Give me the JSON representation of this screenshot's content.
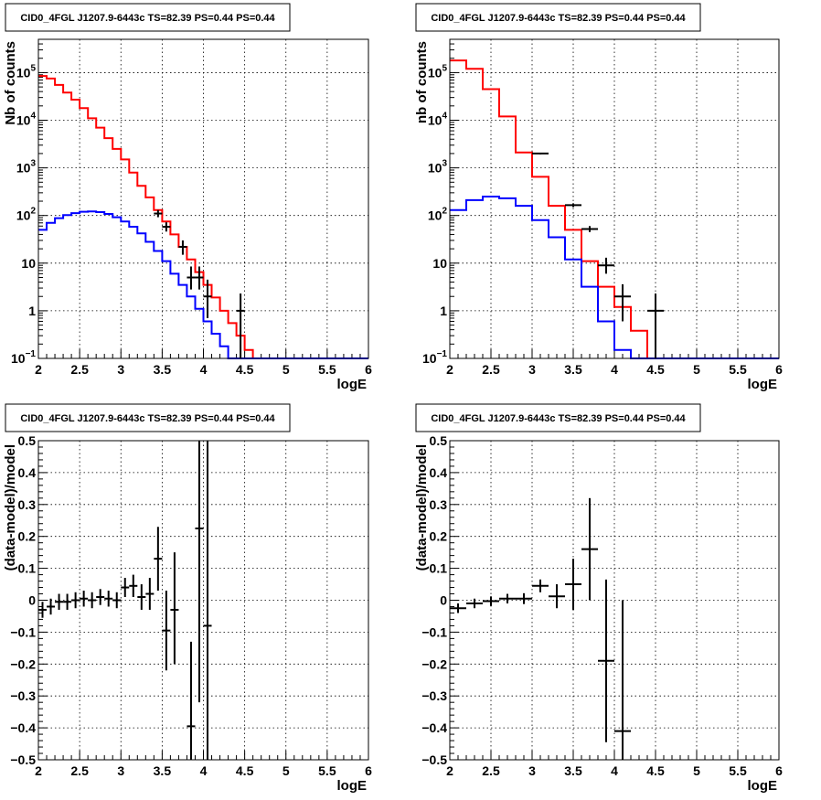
{
  "panels": [
    {
      "title": "CID0_4FGL J1207.9-6443c TS=82.39 PS=0.44 PS=0.44",
      "xlabel": "logE",
      "ylabel": "Nb of counts",
      "xlim": [
        2,
        6
      ],
      "xticks": [
        "2",
        "2.5",
        "3",
        "3.5",
        "4",
        "4.5",
        "5",
        "5.5",
        "6"
      ],
      "ylog": true,
      "ylim": [
        0.1,
        500000
      ],
      "yticks": [
        {
          "v": 0.1,
          "base": "10",
          "exp": "−1"
        },
        {
          "v": 1,
          "label": "1"
        },
        {
          "v": 10,
          "label": "10"
        },
        {
          "v": 100,
          "base": "10",
          "exp": "2"
        },
        {
          "v": 1000,
          "base": "10",
          "exp": "3"
        },
        {
          "v": 10000,
          "base": "10",
          "exp": "4"
        },
        {
          "v": 100000,
          "base": "10",
          "exp": "5"
        }
      ]
    },
    {
      "title": "CID0_4FGL J1207.9-6443c TS=82.39 PS=0.44 PS=0.44",
      "xlabel": "logE",
      "ylabel": "nb of counts",
      "xlim": [
        2,
        6
      ],
      "xticks": [
        "2",
        "2.5",
        "3",
        "3.5",
        "4",
        "4.5",
        "5",
        "5.5",
        "6"
      ],
      "ylog": true,
      "ylim": [
        0.1,
        500000
      ],
      "yticks": [
        {
          "v": 0.1,
          "base": "10",
          "exp": "−1"
        },
        {
          "v": 1,
          "label": "1"
        },
        {
          "v": 10,
          "label": "10"
        },
        {
          "v": 100,
          "base": "10",
          "exp": "2"
        },
        {
          "v": 1000,
          "base": "10",
          "exp": "3"
        },
        {
          "v": 10000,
          "base": "10",
          "exp": "4"
        },
        {
          "v": 100000,
          "base": "10",
          "exp": "5"
        }
      ]
    },
    {
      "title": "CID0_4FGL J1207.9-6443c TS=82.39 PS=0.44 PS=0.44",
      "xlabel": "logE",
      "ylabel": "(data-model)/model",
      "xlim": [
        2,
        6
      ],
      "xticks": [
        "2",
        "2.5",
        "3",
        "3.5",
        "4",
        "4.5",
        "5",
        "5.5",
        "6"
      ],
      "ylog": false,
      "ylim": [
        -0.5,
        0.5
      ],
      "yticks": [
        {
          "v": -0.5,
          "label": "−0.5"
        },
        {
          "v": -0.4,
          "label": "−0.4"
        },
        {
          "v": -0.3,
          "label": "−0.3"
        },
        {
          "v": -0.2,
          "label": "−0.2"
        },
        {
          "v": -0.1,
          "label": "−0.1"
        },
        {
          "v": 0,
          "label": "0"
        },
        {
          "v": 0.1,
          "label": "0.1"
        },
        {
          "v": 0.2,
          "label": "0.2"
        },
        {
          "v": 0.3,
          "label": "0.3"
        },
        {
          "v": 0.4,
          "label": "0.4"
        },
        {
          "v": 0.5,
          "label": "0.5"
        }
      ]
    },
    {
      "title": "CID0_4FGL J1207.9-6443c TS=82.39 PS=0.44 PS=0.44",
      "xlabel": "logE",
      "ylabel": "(data-model)/model",
      "xlim": [
        2,
        6
      ],
      "xticks": [
        "2",
        "2.5",
        "3",
        "3.5",
        "4",
        "4.5",
        "5",
        "5.5",
        "6"
      ],
      "ylog": false,
      "ylim": [
        -0.5,
        0.5
      ],
      "yticks": [
        {
          "v": -0.5,
          "label": "−0.5"
        },
        {
          "v": -0.4,
          "label": "−0.4"
        },
        {
          "v": -0.3,
          "label": "−0.3"
        },
        {
          "v": -0.2,
          "label": "−0.2"
        },
        {
          "v": -0.1,
          "label": "−0.1"
        },
        {
          "v": 0,
          "label": "0"
        },
        {
          "v": 0.1,
          "label": "0.1"
        },
        {
          "v": 0.2,
          "label": "0.2"
        },
        {
          "v": 0.3,
          "label": "0.3"
        },
        {
          "v": 0.4,
          "label": "0.4"
        },
        {
          "v": 0.5,
          "label": "0.5"
        }
      ]
    }
  ],
  "colors": {
    "total_model": "#ff0000",
    "source_model": "#0000ff",
    "data": "#000000",
    "grid": "#000000"
  },
  "chart_data": [
    {
      "type": "line",
      "title": "CID0_4FGL J1207.9-6443c TS=82.39 PS=0.44 PS=0.44",
      "xlabel": "logE",
      "ylabel": "Nb of counts",
      "xlim": [
        2,
        6
      ],
      "ylim": [
        0.1,
        500000
      ],
      "yscale": "log",
      "grid": true,
      "series": [
        {
          "style": "step",
          "color": "#ff0000",
          "edges": [
            2.0,
            2.1,
            2.2,
            2.3,
            2.4,
            2.5,
            2.6,
            2.7,
            2.8,
            2.9,
            3.0,
            3.1,
            3.2,
            3.3,
            3.4,
            3.5,
            3.6,
            3.7,
            3.8,
            3.9,
            4.0,
            4.1,
            4.2,
            4.3,
            4.4,
            4.5,
            4.6,
            4.7,
            4.8,
            4.9,
            5.0,
            5.1,
            5.2,
            5.3,
            5.4,
            5.5,
            5.6,
            5.7,
            5.8,
            5.9,
            6.0
          ],
          "values": [
            85000,
            75000,
            55000,
            38000,
            27000,
            18000,
            11000,
            7000,
            4200,
            2500,
            1500,
            800,
            420,
            240,
            130,
            75,
            40,
            22,
            12,
            6.5,
            3.5,
            1.9,
            1.0,
            0.55,
            0.3,
            0.15,
            0.1,
            0.1,
            0.1,
            0.1,
            0.1,
            0.1,
            0.1,
            0.1,
            0.1,
            0.1,
            0.1,
            0.1,
            0.1,
            0.1
          ]
        },
        {
          "style": "step",
          "color": "#0000ff",
          "edges": [
            2.0,
            2.1,
            2.2,
            2.3,
            2.4,
            2.5,
            2.6,
            2.7,
            2.8,
            2.9,
            3.0,
            3.1,
            3.2,
            3.3,
            3.4,
            3.5,
            3.6,
            3.7,
            3.8,
            3.9,
            4.0,
            4.1,
            4.2,
            4.3,
            4.4,
            4.5,
            4.6,
            4.7,
            4.8,
            4.9,
            5.0,
            5.1,
            5.2,
            5.3,
            5.4,
            5.5,
            5.6,
            5.7,
            5.8,
            5.9,
            6.0
          ],
          "values": [
            50,
            70,
            88,
            102,
            112,
            120,
            122,
            118,
            108,
            92,
            75,
            58,
            42,
            28,
            18,
            11,
            6,
            3.5,
            2.0,
            1.1,
            0.6,
            0.33,
            0.18,
            0.1,
            0.1,
            0.1,
            0.1,
            0.1,
            0.1,
            0.1,
            0.1,
            0.1,
            0.1,
            0.1,
            0.1,
            0.1,
            0.1,
            0.1,
            0.1,
            0.1
          ]
        },
        {
          "style": "errorbar",
          "color": "#000000",
          "points": [
            {
              "x": 3.45,
              "y": 110,
              "xerr": 0.05,
              "ylo": 92,
              "yhi": 130
            },
            {
              "x": 3.55,
              "y": 58,
              "xerr": 0.05,
              "ylo": 46,
              "yhi": 72
            },
            {
              "x": 3.75,
              "y": 22,
              "xerr": 0.05,
              "ylo": 15,
              "yhi": 30
            },
            {
              "x": 3.85,
              "y": 5,
              "xerr": 0.05,
              "ylo": 2.8,
              "yhi": 8.5
            },
            {
              "x": 3.95,
              "y": 5,
              "xerr": 0.05,
              "ylo": 2.8,
              "yhi": 8.5
            },
            {
              "x": 4.05,
              "y": 2,
              "xerr": 0.05,
              "ylo": 0.7,
              "yhi": 4.5
            },
            {
              "x": 4.45,
              "y": 1,
              "xerr": 0.05,
              "ylo": 0.1,
              "yhi": 2.3
            }
          ]
        }
      ]
    },
    {
      "type": "line",
      "title": "CID0_4FGL J1207.9-6443c TS=82.39 PS=0.44 PS=0.44",
      "xlabel": "logE",
      "ylabel": "nb of counts",
      "xlim": [
        2,
        6
      ],
      "ylim": [
        0.1,
        500000
      ],
      "yscale": "log",
      "grid": true,
      "series": [
        {
          "style": "step",
          "color": "#ff0000",
          "edges": [
            2.0,
            2.2,
            2.4,
            2.6,
            2.8,
            3.0,
            3.2,
            3.4,
            3.6,
            3.8,
            4.0,
            4.2,
            4.4,
            4.6,
            4.8,
            5.0,
            5.2,
            5.4,
            5.6,
            5.8,
            6.0
          ],
          "values": [
            180000,
            120000,
            45000,
            12000,
            2100,
            650,
            160,
            50,
            11,
            3.2,
            1.2,
            0.38,
            0.1,
            0.1,
            0.1,
            0.1,
            0.1,
            0.1,
            0.1,
            0.1
          ]
        },
        {
          "style": "step",
          "color": "#0000ff",
          "edges": [
            2.0,
            2.2,
            2.4,
            2.6,
            2.8,
            3.0,
            3.2,
            3.4,
            3.6,
            3.8,
            4.0,
            4.2,
            4.4,
            4.6,
            4.8,
            5.0,
            5.2,
            5.4,
            5.6,
            5.8,
            6.0
          ],
          "values": [
            130,
            210,
            250,
            230,
            160,
            80,
            35,
            12,
            3.2,
            0.6,
            0.15,
            0.1,
            0.1,
            0.1,
            0.1,
            0.1,
            0.1,
            0.1,
            0.1,
            0.1
          ]
        },
        {
          "style": "errorbar",
          "color": "#000000",
          "points": [
            {
              "x": 3.1,
              "y": 2000,
              "xerr": 0.1,
              "ylo": 1920,
              "yhi": 2080
            },
            {
              "x": 3.5,
              "y": 165,
              "xerr": 0.1,
              "ylo": 150,
              "yhi": 180
            },
            {
              "x": 3.7,
              "y": 52,
              "xerr": 0.1,
              "ylo": 45,
              "yhi": 60
            },
            {
              "x": 3.9,
              "y": 9,
              "xerr": 0.1,
              "ylo": 6,
              "yhi": 13
            },
            {
              "x": 4.1,
              "y": 2,
              "xerr": 0.1,
              "ylo": 0.6,
              "yhi": 3.6
            },
            {
              "x": 4.5,
              "y": 1,
              "xerr": 0.1,
              "ylo": 0.1,
              "yhi": 2.3
            }
          ]
        }
      ]
    },
    {
      "type": "scatter",
      "title": "CID0_4FGL J1207.9-6443c TS=82.39 PS=0.44 PS=0.44",
      "xlabel": "logE",
      "ylabel": "(data-model)/model",
      "xlim": [
        2,
        6
      ],
      "ylim": [
        -0.5,
        0.5
      ],
      "grid": true,
      "series": [
        {
          "style": "errorbar",
          "color": "#000000",
          "points": [
            {
              "x": 2.05,
              "y": -0.03,
              "xerr": 0.05,
              "ylo": -0.055,
              "yhi": -0.005
            },
            {
              "x": 2.15,
              "y": -0.02,
              "xerr": 0.05,
              "ylo": -0.045,
              "yhi": 0.005
            },
            {
              "x": 2.25,
              "y": -0.005,
              "xerr": 0.05,
              "ylo": -0.03,
              "yhi": 0.02
            },
            {
              "x": 2.35,
              "y": -0.005,
              "xerr": 0.05,
              "ylo": -0.03,
              "yhi": 0.02
            },
            {
              "x": 2.45,
              "y": 0.0,
              "xerr": 0.05,
              "ylo": -0.025,
              "yhi": 0.025
            },
            {
              "x": 2.55,
              "y": 0.005,
              "xerr": 0.05,
              "ylo": -0.02,
              "yhi": 0.03
            },
            {
              "x": 2.65,
              "y": 0.0,
              "xerr": 0.05,
              "ylo": -0.025,
              "yhi": 0.025
            },
            {
              "x": 2.75,
              "y": 0.01,
              "xerr": 0.05,
              "ylo": -0.015,
              "yhi": 0.035
            },
            {
              "x": 2.85,
              "y": 0.005,
              "xerr": 0.05,
              "ylo": -0.02,
              "yhi": 0.03
            },
            {
              "x": 2.95,
              "y": 0.0,
              "xerr": 0.05,
              "ylo": -0.025,
              "yhi": 0.025
            },
            {
              "x": 3.05,
              "y": 0.04,
              "xerr": 0.05,
              "ylo": 0.01,
              "yhi": 0.07
            },
            {
              "x": 3.15,
              "y": 0.045,
              "xerr": 0.05,
              "ylo": 0.01,
              "yhi": 0.08
            },
            {
              "x": 3.25,
              "y": 0.01,
              "xerr": 0.05,
              "ylo": -0.03,
              "yhi": 0.05
            },
            {
              "x": 3.35,
              "y": 0.02,
              "xerr": 0.05,
              "ylo": -0.03,
              "yhi": 0.07
            },
            {
              "x": 3.45,
              "y": 0.13,
              "xerr": 0.05,
              "ylo": 0.03,
              "yhi": 0.23
            },
            {
              "x": 3.55,
              "y": -0.095,
              "xerr": 0.05,
              "ylo": -0.22,
              "yhi": 0.03
            },
            {
              "x": 3.65,
              "y": -0.03,
              "xerr": 0.05,
              "ylo": -0.2,
              "yhi": 0.15
            },
            {
              "x": 3.85,
              "y": -0.395,
              "xerr": 0.05,
              "ylo": -0.5,
              "yhi": -0.13
            },
            {
              "x": 3.95,
              "y": 0.225,
              "xerr": 0.05,
              "ylo": -0.32,
              "yhi": 0.5
            },
            {
              "x": 4.05,
              "y": -0.08,
              "xerr": 0.05,
              "ylo": -0.5,
              "yhi": 0.5
            }
          ]
        }
      ]
    },
    {
      "type": "scatter",
      "title": "CID0_4FGL J1207.9-6443c TS=82.39 PS=0.44 PS=0.44",
      "xlabel": "logE",
      "ylabel": "(data-model)/model",
      "xlim": [
        2,
        6
      ],
      "ylim": [
        -0.5,
        0.5
      ],
      "grid": true,
      "series": [
        {
          "style": "errorbar",
          "color": "#000000",
          "points": [
            {
              "x": 2.1,
              "y": -0.025,
              "xerr": 0.1,
              "ylo": -0.04,
              "yhi": -0.01
            },
            {
              "x": 2.3,
              "y": -0.01,
              "xerr": 0.1,
              "ylo": -0.025,
              "yhi": 0.005
            },
            {
              "x": 2.5,
              "y": -0.003,
              "xerr": 0.1,
              "ylo": -0.018,
              "yhi": 0.012
            },
            {
              "x": 2.7,
              "y": 0.005,
              "xerr": 0.1,
              "ylo": -0.01,
              "yhi": 0.02
            },
            {
              "x": 2.9,
              "y": 0.005,
              "xerr": 0.1,
              "ylo": -0.012,
              "yhi": 0.022
            },
            {
              "x": 3.1,
              "y": 0.045,
              "xerr": 0.1,
              "ylo": 0.025,
              "yhi": 0.065
            },
            {
              "x": 3.3,
              "y": 0.012,
              "xerr": 0.1,
              "ylo": -0.025,
              "yhi": 0.05
            },
            {
              "x": 3.5,
              "y": 0.05,
              "xerr": 0.1,
              "ylo": -0.03,
              "yhi": 0.13
            },
            {
              "x": 3.7,
              "y": 0.16,
              "xerr": 0.1,
              "ylo": 0.0,
              "yhi": 0.32
            },
            {
              "x": 3.9,
              "y": -0.19,
              "xerr": 0.1,
              "ylo": -0.445,
              "yhi": 0.065
            },
            {
              "x": 4.1,
              "y": -0.41,
              "xerr": 0.1,
              "ylo": -0.5,
              "yhi": 0.0
            }
          ]
        }
      ]
    }
  ]
}
